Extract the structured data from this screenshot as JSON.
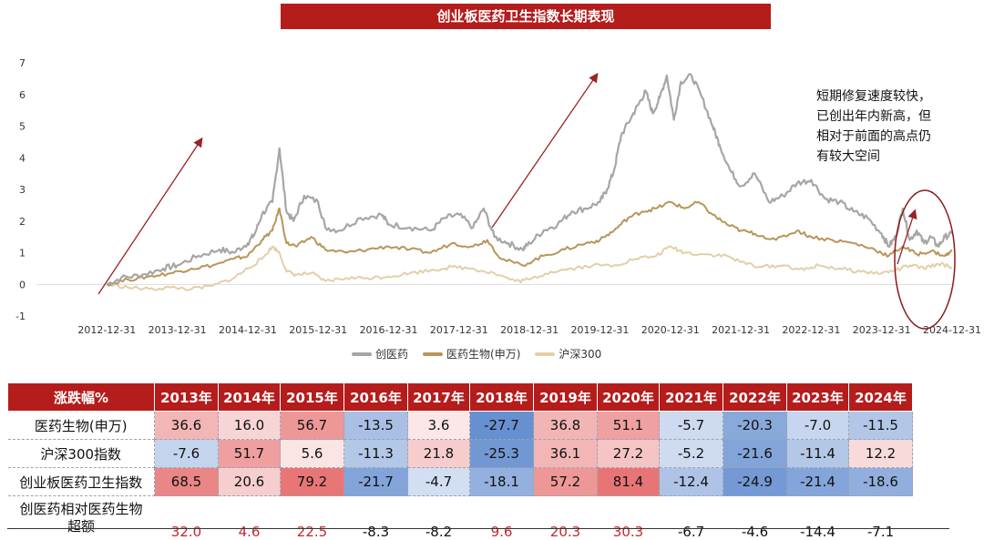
{
  "title": "创业板医药卫生指数长期表现",
  "annotation": [
    "短期修复速度较快，",
    "已创出年内新高，但",
    "相对于前面的高点仍",
    "有较大空间"
  ],
  "legend": [
    {
      "label": "创医药",
      "color": "#a6a6a6"
    },
    {
      "label": "医药生物(申万)",
      "color": "#b8955a"
    },
    {
      "label": "沪深300",
      "color": "#e3cfa9"
    }
  ],
  "chart_data": {
    "type": "line",
    "x_ticks": [
      "2012-12-31",
      "2013-12-31",
      "2014-12-31",
      "2015-12-31",
      "2016-12-31",
      "2017-12-31",
      "2018-12-31",
      "2019-12-31",
      "2020-12-31",
      "2021-12-31",
      "2022-12-31",
      "2023-12-31",
      "2024-12-31"
    ],
    "y_ticks": [
      "7",
      "6",
      "5",
      "4",
      "3",
      "2",
      "1",
      "0",
      "-1"
    ],
    "ylim": [
      -1,
      7
    ],
    "x_year_range": [
      2012.0,
      2025.0
    ],
    "series": [
      {
        "name": "创医药",
        "color": "#a6a6a6",
        "x": [
          2013.0,
          2013.2,
          2013.5,
          2013.8,
          2014.0,
          2014.3,
          2014.6,
          2014.8,
          2015.0,
          2015.1,
          2015.2,
          2015.35,
          2015.45,
          2015.55,
          2015.65,
          2015.8,
          2016.0,
          2016.1,
          2016.3,
          2016.6,
          2016.9,
          2017.0,
          2017.3,
          2017.6,
          2017.8,
          2018.0,
          2018.2,
          2018.35,
          2018.5,
          2018.7,
          2018.9,
          2019.0,
          2019.2,
          2019.4,
          2019.6,
          2019.8,
          2020.0,
          2020.1,
          2020.2,
          2020.3,
          2020.45,
          2020.55,
          2020.65,
          2020.75,
          2020.85,
          2020.95,
          2021.05,
          2021.15,
          2021.3,
          2021.45,
          2021.6,
          2021.7,
          2021.85,
          2022.0,
          2022.2,
          2022.4,
          2022.6,
          2022.8,
          2023.0,
          2023.2,
          2023.4,
          2023.6,
          2023.8,
          2024.0,
          2024.1,
          2024.2,
          2024.3,
          2024.4,
          2024.5,
          2024.6,
          2024.7,
          2024.8,
          2024.9,
          2025.0
        ],
        "y": [
          0,
          0.2,
          0.3,
          0.5,
          0.6,
          0.9,
          1.1,
          1.0,
          1.3,
          1.6,
          2.2,
          2.6,
          4.3,
          2.3,
          2.0,
          2.8,
          2.6,
          1.8,
          1.7,
          2.1,
          2.2,
          1.9,
          1.8,
          1.7,
          2.1,
          2.2,
          1.8,
          2.4,
          1.5,
          1.3,
          1.1,
          1.3,
          1.7,
          1.9,
          2.3,
          2.4,
          2.6,
          3.0,
          3.6,
          4.7,
          5.3,
          5.7,
          6.1,
          5.4,
          5.9,
          6.6,
          5.2,
          6.4,
          6.6,
          5.9,
          5.0,
          4.4,
          3.6,
          3.1,
          3.5,
          2.6,
          2.8,
          3.2,
          3.3,
          2.7,
          2.6,
          2.3,
          2.1,
          1.6,
          1.2,
          1.5,
          2.4,
          1.4,
          1.7,
          1.3,
          1.5,
          1.2,
          1.5,
          1.6
        ]
      },
      {
        "name": "医药生物(申万)",
        "color": "#b8955a",
        "x": [
          2013.0,
          2013.3,
          2013.6,
          2013.9,
          2014.2,
          2014.5,
          2014.8,
          2015.0,
          2015.2,
          2015.35,
          2015.45,
          2015.55,
          2015.7,
          2015.9,
          2016.1,
          2016.4,
          2016.7,
          2017.0,
          2017.3,
          2017.6,
          2017.9,
          2018.2,
          2018.4,
          2018.6,
          2018.9,
          2019.2,
          2019.5,
          2019.8,
          2020.0,
          2020.2,
          2020.4,
          2020.6,
          2020.8,
          2021.0,
          2021.2,
          2021.4,
          2021.6,
          2021.8,
          2022.0,
          2022.2,
          2022.5,
          2022.8,
          2023.0,
          2023.3,
          2023.6,
          2023.9,
          2024.1,
          2024.3,
          2024.5,
          2024.7,
          2024.9,
          2025.0
        ],
        "y": [
          0,
          0.15,
          0.25,
          0.35,
          0.5,
          0.6,
          0.8,
          0.9,
          1.4,
          1.7,
          2.4,
          1.3,
          1.2,
          1.5,
          1.1,
          1.0,
          1.1,
          1.2,
          1.1,
          1.0,
          1.3,
          1.2,
          1.4,
          0.8,
          0.6,
          0.9,
          1.1,
          1.3,
          1.4,
          1.7,
          2.1,
          2.3,
          2.4,
          2.6,
          2.4,
          2.6,
          2.2,
          1.9,
          1.7,
          1.6,
          1.4,
          1.7,
          1.5,
          1.4,
          1.3,
          1.1,
          0.9,
          1.2,
          0.95,
          1.05,
          0.9,
          1.05
        ]
      },
      {
        "name": "沪深300",
        "color": "#e3cfa9",
        "x": [
          2013.0,
          2013.3,
          2013.6,
          2013.9,
          2014.2,
          2014.5,
          2014.8,
          2015.0,
          2015.2,
          2015.35,
          2015.45,
          2015.55,
          2015.7,
          2015.9,
          2016.1,
          2016.4,
          2016.7,
          2017.0,
          2017.3,
          2017.6,
          2017.9,
          2018.2,
          2018.5,
          2018.8,
          2019.0,
          2019.3,
          2019.6,
          2019.9,
          2020.2,
          2020.5,
          2020.8,
          2021.0,
          2021.2,
          2021.5,
          2021.8,
          2022.0,
          2022.3,
          2022.6,
          2022.9,
          2023.1,
          2023.4,
          2023.7,
          2024.0,
          2024.2,
          2024.4,
          2024.6,
          2024.8,
          2025.0
        ],
        "y": [
          0,
          -0.1,
          -0.15,
          -0.1,
          -0.15,
          -0.05,
          0.2,
          0.5,
          0.8,
          1.2,
          1.0,
          0.4,
          0.3,
          0.35,
          0.1,
          0.2,
          0.2,
          0.25,
          0.35,
          0.45,
          0.55,
          0.5,
          0.35,
          0.1,
          0.15,
          0.4,
          0.5,
          0.6,
          0.6,
          0.8,
          0.9,
          1.2,
          1.0,
          0.95,
          0.9,
          0.7,
          0.55,
          0.6,
          0.45,
          0.6,
          0.5,
          0.4,
          0.35,
          0.45,
          0.6,
          0.5,
          0.65,
          0.55
        ]
      }
    ]
  },
  "table": {
    "header_label": "涨跌幅%",
    "years": [
      "2013年",
      "2014年",
      "2015年",
      "2016年",
      "2017年",
      "2018年",
      "2019年",
      "2020年",
      "2021年",
      "2022年",
      "2023年",
      "2024年"
    ],
    "rows": [
      {
        "label": "医药生物(申万)",
        "values": [
          "36.6",
          "16.0",
          "56.7",
          "-13.5",
          "3.6",
          "-27.7",
          "36.8",
          "51.1",
          "-5.7",
          "-20.3",
          "-7.0",
          "-11.5"
        ]
      },
      {
        "label": "沪深300指数",
        "values": [
          "-7.6",
          "51.7",
          "5.6",
          "-11.3",
          "21.8",
          "-25.3",
          "36.1",
          "27.2",
          "-5.2",
          "-21.6",
          "-11.4",
          "12.2"
        ]
      },
      {
        "label": "创业板医药卫生指数",
        "values": [
          "68.5",
          "20.6",
          "79.2",
          "-21.7",
          "-4.7",
          "-18.1",
          "57.2",
          "81.4",
          "-12.4",
          "-24.9",
          "-21.4",
          "-18.6"
        ]
      }
    ],
    "excess_label_lines": [
      "创医药相对医药生物",
      "超额"
    ],
    "excess_values": [
      "32.0",
      "4.6",
      "22.5",
      "-8.3",
      "-8.2",
      "9.6",
      "20.3",
      "30.3",
      "-6.7",
      "-4.6",
      "-14.4",
      "-7.1"
    ],
    "positive_text_color": "#c0282d",
    "negative_text_color": "#111111"
  }
}
